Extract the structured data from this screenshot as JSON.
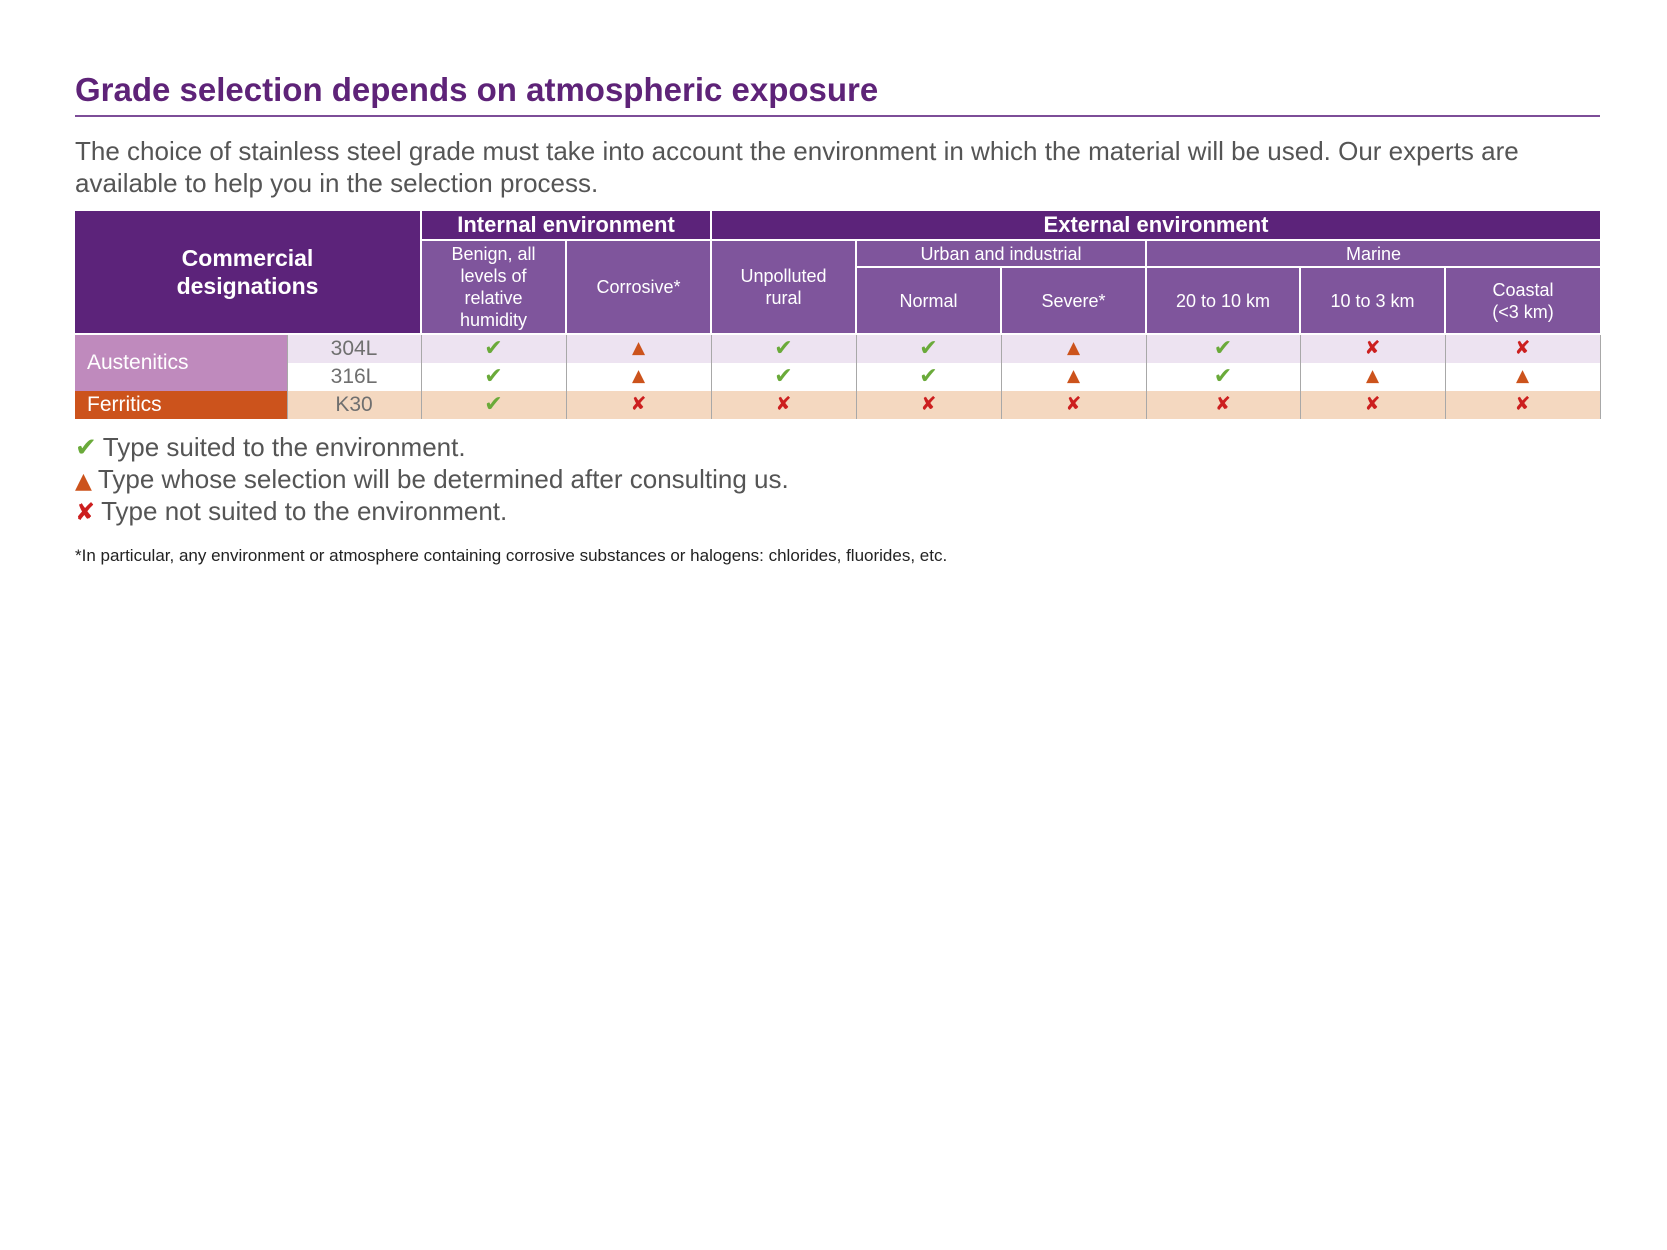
{
  "title": "Grade selection depends on atmospheric exposure",
  "intro": "The choice of stainless steel grade must take into account the environment in which the material will be used. Our experts are available to help you in the selection process.",
  "table": {
    "designations_header": "Commercial designations",
    "internal_header": "Internal environment",
    "external_header": "External environment",
    "urban_header": "Urban and industrial",
    "marine_header": "Marine",
    "columns": {
      "benign": "Benign, all levels of relative humidity",
      "corrosive": "Corrosive*",
      "rural": "Unpolluted rural",
      "normal": "Normal",
      "severe": "Severe*",
      "m20_10": "20 to 10 km",
      "m10_3": "10 to 3 km",
      "coastal": "Coastal (<3 km)"
    },
    "families": {
      "austenitics": "Austenitics",
      "ferritics": "Ferritics"
    },
    "rows": [
      {
        "grade": "304L",
        "family": "Austenitics",
        "values": [
          "suited",
          "consult",
          "suited",
          "suited",
          "consult",
          "suited",
          "not_suited",
          "not_suited"
        ]
      },
      {
        "grade": "316L",
        "family": "Austenitics",
        "values": [
          "suited",
          "consult",
          "suited",
          "suited",
          "consult",
          "suited",
          "consult",
          "consult"
        ]
      },
      {
        "grade": "K30",
        "family": "Ferritics",
        "values": [
          "suited",
          "not_suited",
          "not_suited",
          "not_suited",
          "not_suited",
          "not_suited",
          "not_suited",
          "not_suited"
        ]
      }
    ]
  },
  "symbols": {
    "suited": {
      "glyph": "✔",
      "icon": "check-icon",
      "color": "#6aaa3a"
    },
    "consult": {
      "glyph": "▲",
      "icon": "triangle-icon",
      "color": "#cc531c"
    },
    "not_suited": {
      "glyph": "✘",
      "icon": "cross-icon",
      "color": "#cc1f1f"
    }
  },
  "legend": {
    "suited": "Type suited to the environment.",
    "consult": "Type whose selection will be determined after consulting us.",
    "not_suited": "Type not suited to the environment."
  },
  "footnote": "*In particular, any environment or atmosphere containing corrosive substances or halogens: chlorides, fluorides, etc.",
  "colors": {
    "brand_purple": "#5c237a",
    "header_purple": "#7f559c",
    "austenitics": "#bf8abd",
    "ferritics": "#cc531c"
  }
}
